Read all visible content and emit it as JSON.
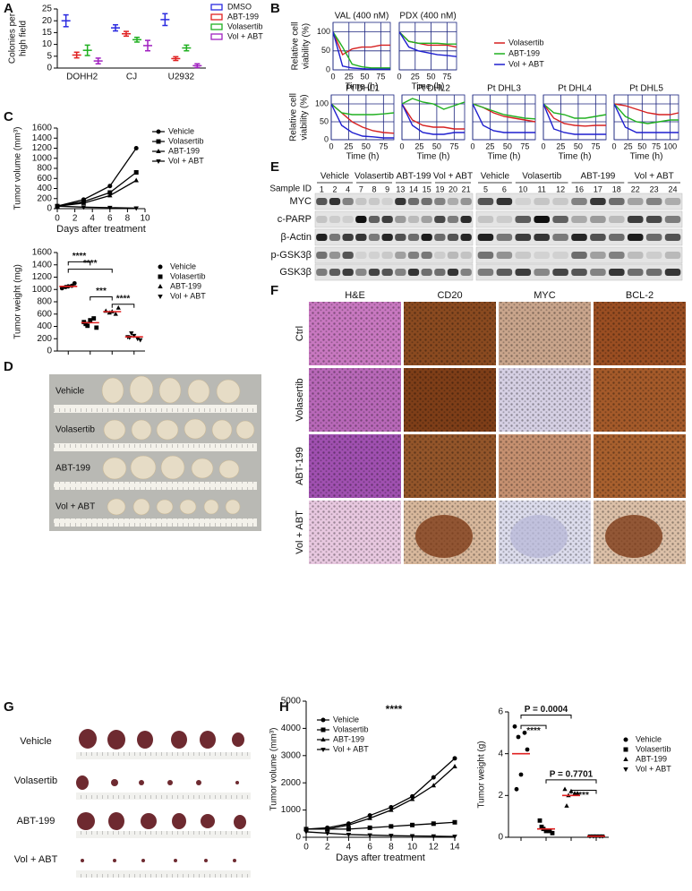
{
  "panel_labels": [
    "A",
    "B",
    "C",
    "D",
    "E",
    "F",
    "G",
    "H"
  ],
  "chart_data": [
    {
      "type": "errorpoint",
      "ylabel": [
        "Colonies per",
        "high field"
      ],
      "categories": [
        "DOHH2",
        "CJ",
        "U2932"
      ],
      "ylim": [
        0,
        25
      ],
      "yticks": [
        0,
        5,
        10,
        15,
        20,
        25
      ],
      "series": [
        {
          "name": "DMSO",
          "color": "#2a2ae0",
          "values": [
            20,
            17,
            20.5
          ],
          "errors": [
            2.5,
            1.3,
            2.5
          ]
        },
        {
          "name": "ABT-199",
          "color": "#e02020",
          "values": [
            5.5,
            14.5,
            4
          ],
          "errors": [
            1.2,
            1,
            0.8
          ]
        },
        {
          "name": "Volasertib",
          "color": "#20b020",
          "values": [
            7.5,
            12,
            8.5
          ],
          "errors": [
            2.2,
            1,
            1.2
          ]
        },
        {
          "name": "Vol + ABT",
          "color": "#a020c0",
          "values": [
            3,
            9.5,
            1
          ],
          "errors": [
            1.2,
            2.2,
            0.8
          ]
        }
      ]
    },
    {
      "type": "line_panels",
      "ylabel": [
        "Relative cell",
        "viability (%)"
      ],
      "xlabel": "Time (h)",
      "ylim": [
        0,
        125
      ],
      "yticks": [
        0,
        50,
        100
      ],
      "grid": true,
      "grid_color": "#1a237e",
      "series": [
        {
          "name": "Volasertib",
          "color": "#d62020"
        },
        {
          "name": "ABT-199",
          "color": "#20b020"
        },
        {
          "name": "Vol + ABT",
          "color": "#1f1fcf"
        }
      ],
      "panels": [
        {
          "title": "VAL (400 nM)",
          "x": [
            0,
            15,
            30,
            45,
            60,
            75,
            90
          ],
          "xlim": [
            0,
            90
          ],
          "xticks": [
            0,
            25,
            50,
            75
          ],
          "values": [
            [
              100,
              40,
              55,
              60,
              60,
              65,
              65
            ],
            [
              100,
              60,
              15,
              8,
              5,
              5,
              5
            ],
            [
              100,
              10,
              5,
              3,
              2,
              2,
              2
            ]
          ]
        },
        {
          "title": "PDX (400 nM)",
          "x": [
            0,
            15,
            30,
            45,
            60,
            75,
            90
          ],
          "xlim": [
            0,
            90
          ],
          "xticks": [
            0,
            25,
            50,
            75
          ],
          "values": [
            [
              100,
              75,
              70,
              65,
              65,
              65,
              60
            ],
            [
              100,
              75,
              70,
              70,
              70,
              68,
              68
            ],
            [
              100,
              60,
              50,
              45,
              40,
              38,
              35
            ]
          ]
        },
        {
          "title": "Pt  DHL1",
          "x": [
            0,
            15,
            30,
            45,
            60,
            75,
            90
          ],
          "xlim": [
            0,
            90
          ],
          "xticks": [
            0,
            25,
            50,
            75
          ],
          "values": [
            [
              100,
              75,
              50,
              35,
              25,
              20,
              18
            ],
            [
              100,
              75,
              70,
              70,
              70,
              72,
              75
            ],
            [
              100,
              40,
              20,
              10,
              8,
              5,
              5
            ]
          ]
        },
        {
          "title": "Pt  DHL2",
          "x": [
            0,
            15,
            30,
            45,
            60,
            75,
            90
          ],
          "xlim": [
            0,
            90
          ],
          "xticks": [
            0,
            25,
            50,
            75
          ],
          "values": [
            [
              100,
              55,
              40,
              35,
              35,
              30,
              30
            ],
            [
              100,
              115,
              105,
              100,
              85,
              95,
              105
            ],
            [
              100,
              40,
              20,
              15,
              15,
              20,
              20
            ]
          ]
        },
        {
          "title": "Pt  DHL3",
          "x": [
            0,
            15,
            30,
            45,
            60,
            75,
            90
          ],
          "xlim": [
            0,
            90
          ],
          "xticks": [
            0,
            25,
            50,
            75
          ],
          "values": [
            [
              100,
              90,
              75,
              65,
              60,
              55,
              50
            ],
            [
              100,
              90,
              80,
              70,
              65,
              60,
              58
            ],
            [
              100,
              40,
              25,
              20,
              20,
              20,
              20
            ]
          ]
        },
        {
          "title": "Pt  DHL4",
          "x": [
            0,
            15,
            30,
            45,
            60,
            75,
            90
          ],
          "xlim": [
            0,
            90
          ],
          "xticks": [
            0,
            25,
            50,
            75
          ],
          "values": [
            [
              100,
              60,
              45,
              40,
              38,
              40,
              40
            ],
            [
              100,
              75,
              70,
              60,
              60,
              65,
              70
            ],
            [
              100,
              30,
              20,
              15,
              15,
              15,
              15
            ]
          ]
        },
        {
          "title": "Pt  DHL5",
          "x": [
            0,
            20,
            40,
            60,
            80,
            100,
            115
          ],
          "xlim": [
            0,
            115
          ],
          "xticks": [
            0,
            25,
            50,
            75,
            100
          ],
          "values": [
            [
              100,
              95,
              85,
              75,
              70,
              70,
              75
            ],
            [
              100,
              65,
              50,
              45,
              50,
              55,
              55
            ],
            [
              100,
              35,
              20,
              20,
              20,
              20,
              20
            ]
          ]
        }
      ]
    },
    {
      "type": "line",
      "ylabel": "Tumor volume (mm³)",
      "xlabel": "Days after treatment",
      "x": [
        0,
        3,
        6,
        9
      ],
      "xlim": [
        0,
        10
      ],
      "xticks": [
        0,
        2,
        4,
        6,
        8,
        10
      ],
      "ylim": [
        0,
        1600
      ],
      "yticks": [
        0,
        200,
        400,
        600,
        800,
        1000,
        1200,
        1400,
        1600
      ],
      "series": [
        {
          "name": "Vehicle",
          "marker": "circle",
          "color": "#000000",
          "values": [
            50,
            180,
            450,
            1200
          ]
        },
        {
          "name": "Volasertib",
          "marker": "square",
          "color": "#000000",
          "values": [
            50,
            140,
            320,
            720
          ]
        },
        {
          "name": "ABT-199",
          "marker": "triangle",
          "color": "#000000",
          "values": [
            50,
            110,
            260,
            560
          ]
        },
        {
          "name": "Vol + ABT",
          "marker": "triangle-down",
          "color": "#000000",
          "values": [
            50,
            30,
            20,
            10
          ]
        }
      ]
    },
    {
      "type": "dotplot",
      "ylabel": "Tumor weight (mg)",
      "ylim": [
        0,
        1600
      ],
      "yticks": [
        0,
        200,
        400,
        600,
        800,
        1000,
        1200,
        1400,
        1600
      ],
      "mean_color": "#e02020",
      "series": [
        {
          "name": "Vehicle",
          "marker": "circle",
          "color": "#000000",
          "values": [
            1020,
            1060,
            1040,
            1100,
            1050
          ],
          "mean": 1050
        },
        {
          "name": "Volasertib",
          "marker": "square",
          "color": "#000000",
          "values": [
            470,
            530,
            410,
            380,
            500,
            440
          ],
          "mean": 460
        },
        {
          "name": "ABT-199",
          "marker": "triangle",
          "color": "#000000",
          "values": [
            650,
            600,
            620,
            700,
            640
          ],
          "mean": 640
        },
        {
          "name": "Vol + ABT",
          "marker": "triangle-down",
          "color": "#000000",
          "values": [
            230,
            200,
            290,
            180,
            250,
            220
          ],
          "mean": 230
        }
      ],
      "annotations": [
        "****",
        "****",
        "***",
        "****"
      ]
    },
    {
      "type": "line",
      "ylabel": "Tumor volume (mm³)",
      "xlabel": "Days after treatment",
      "x": [
        0,
        2,
        4,
        6,
        8,
        10,
        12,
        14
      ],
      "xlim": [
        0,
        14
      ],
      "xticks": [
        0,
        2,
        4,
        6,
        8,
        10,
        12,
        14
      ],
      "ylim": [
        0,
        5000
      ],
      "yticks": [
        0,
        1000,
        2000,
        3000,
        4000,
        5000
      ],
      "series": [
        {
          "name": "Vehicle",
          "marker": "circle",
          "color": "#000000",
          "values": [
            300,
            350,
            500,
            800,
            1100,
            1500,
            2200,
            2900
          ]
        },
        {
          "name": "Volasertib",
          "marker": "square",
          "color": "#000000",
          "values": [
            300,
            300,
            300,
            350,
            400,
            450,
            500,
            550
          ]
        },
        {
          "name": "ABT-199",
          "marker": "triangle",
          "color": "#000000",
          "values": [
            300,
            300,
            450,
            700,
            1000,
            1400,
            1900,
            2600
          ]
        },
        {
          "name": "Vol + ABT",
          "marker": "triangle-down",
          "color": "#000000",
          "values": [
            200,
            150,
            100,
            80,
            60,
            50,
            40,
            30
          ]
        }
      ],
      "annotations": [
        "****"
      ]
    },
    {
      "type": "dotplot",
      "ylabel": "Tumor weight (g)",
      "ylim": [
        0,
        6
      ],
      "yticks": [
        0,
        2,
        4,
        6
      ],
      "mean_color": "#e02020",
      "series": [
        {
          "name": "Vehicle",
          "marker": "circle",
          "color": "#000000",
          "values": [
            5.3,
            5.0,
            4.8,
            4.2,
            3.0,
            2.3
          ],
          "mean": 4.0
        },
        {
          "name": "Volasertib",
          "marker": "square",
          "color": "#000000",
          "values": [
            0.8,
            0.3,
            0.4,
            0.2,
            0.3,
            0.5
          ],
          "mean": 0.4
        },
        {
          "name": "ABT-199",
          "marker": "triangle",
          "color": "#000000",
          "values": [
            2.3,
            2.1,
            2.0,
            2.1,
            2.2,
            1.5
          ],
          "mean": 2.0
        },
        {
          "name": "Vol + ABT",
          "marker": "triangle-down",
          "color": "#000000",
          "values": [
            0.05,
            0.05,
            0.05,
            0.05,
            0.05
          ],
          "mean": 0.05
        }
      ],
      "annotations": [
        "P = 0.0004",
        "****",
        "P = 0.7701",
        "***"
      ]
    }
  ],
  "photos_d": {
    "labels": [
      "Vehicle",
      "Volasertib",
      "ABT-199",
      "Vol + ABT"
    ]
  },
  "blot": {
    "sample_id_label": "Sample ID",
    "halves": [
      {
        "groups": [
          {
            "name": "Vehicle",
            "ids": [
              1,
              2,
              4
            ]
          },
          {
            "name": "Volasertib",
            "ids": [
              7,
              8,
              9
            ]
          },
          {
            "name": "ABT-199",
            "ids": [
              13,
              14,
              15
            ]
          },
          {
            "name": "Vol + ABT",
            "ids": [
              19,
              20,
              21
            ]
          }
        ]
      },
      {
        "groups": [
          {
            "name": "Vehicle",
            "ids": [
              5,
              6
            ]
          },
          {
            "name": "Volasertib",
            "ids": [
              10,
              11,
              12
            ]
          },
          {
            "name": "ABT-199",
            "ids": [
              16,
              17,
              18
            ]
          },
          {
            "name": "Vol + ABT",
            "ids": [
              22,
              23,
              24
            ]
          }
        ]
      }
    ],
    "rows": [
      "MYC",
      "c-PARP",
      "β-Actin",
      "p-GSK3β",
      "GSK3β"
    ]
  },
  "histology": {
    "columns": [
      "H&E",
      "CD20",
      "MYC",
      "BCL-2"
    ],
    "rows": [
      "Ctrl",
      "Volasertib",
      "ABT-199",
      "Vol + ABT"
    ]
  },
  "photos_g": {
    "labels": [
      "Vehicle",
      "Volasertib",
      "ABT-199",
      "Vol + ABT"
    ]
  }
}
